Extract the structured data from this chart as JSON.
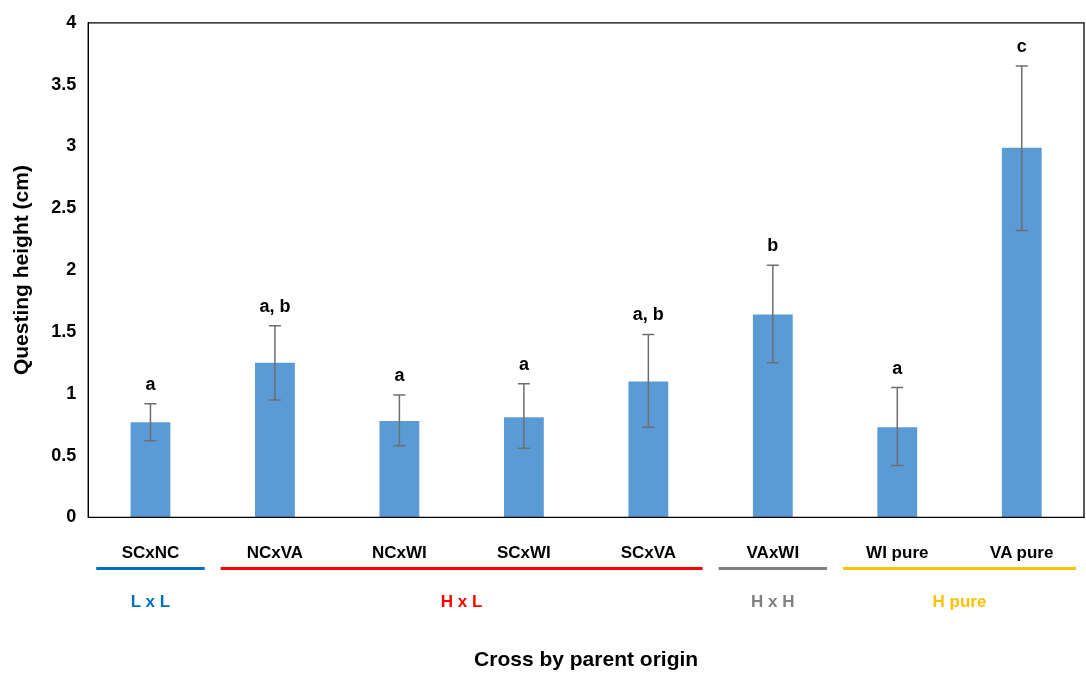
{
  "chart_data": {
    "type": "bar",
    "xlabel": "Cross by parent origin",
    "ylabel": "Questing height (cm)",
    "categories": [
      "SCxNC",
      "NCxVA",
      "NCxWI",
      "SCxWI",
      "SCxVA",
      "VAxWI",
      "WI pure",
      "VA pure"
    ],
    "values": [
      0.77,
      1.25,
      0.78,
      0.81,
      1.1,
      1.64,
      0.73,
      2.99
    ],
    "errors": [
      [
        0.62,
        0.92
      ],
      [
        0.95,
        1.55
      ],
      [
        0.58,
        0.99
      ],
      [
        0.56,
        1.08
      ],
      [
        0.73,
        1.48
      ],
      [
        1.25,
        2.04
      ],
      [
        0.42,
        1.05
      ],
      [
        2.32,
        3.65
      ]
    ],
    "color": "#5b9bd5",
    "ylim": [
      0,
      4
    ],
    "yticks": [
      0,
      0.5,
      1,
      1.5,
      2,
      2.5,
      3,
      3.5,
      4
    ],
    "grid": false,
    "legend": false,
    "annotations": [
      {
        "text": "a",
        "x": "SCxNC",
        "y": 0.92
      },
      {
        "text": "a, b",
        "x": "NCxVA",
        "y": 1.55
      },
      {
        "text": "a",
        "x": "NCxWI",
        "y": 0.99
      },
      {
        "text": "a",
        "x": "SCxWI",
        "y": 1.08
      },
      {
        "text": "a, b",
        "x": "SCxVA",
        "y": 1.48
      },
      {
        "text": "b",
        "x": "VAxWI",
        "y": 2.04
      },
      {
        "text": "a",
        "x": "WI pure",
        "y": 1.05
      },
      {
        "text": "c",
        "x": "VA pure",
        "y": 3.65
      },
      "L x L",
      "H x L",
      "H x H",
      "H pure"
    ]
  }
}
